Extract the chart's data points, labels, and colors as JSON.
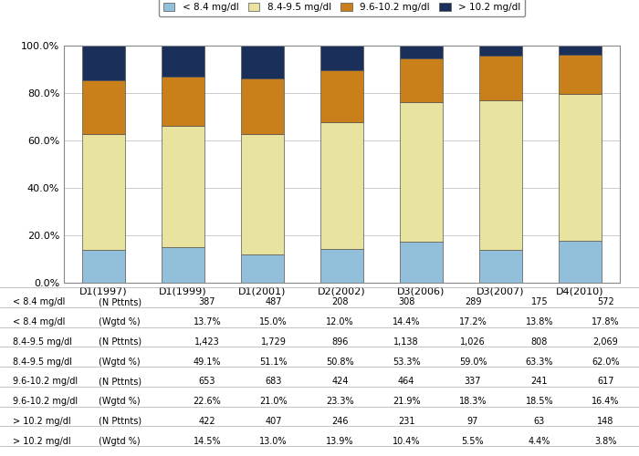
{
  "categories": [
    "D1(1997)",
    "D1(1999)",
    "D1(2001)",
    "D2(2002)",
    "D3(2006)",
    "D3(2007)",
    "D4(2010)"
  ],
  "series": {
    "< 8.4 mg/dl": [
      13.7,
      15.0,
      12.0,
      14.4,
      17.2,
      13.8,
      17.8
    ],
    "8.4-9.5 mg/dl": [
      49.1,
      51.1,
      50.8,
      53.3,
      59.0,
      63.3,
      62.0
    ],
    "9.6-10.2 mg/dl": [
      22.6,
      21.0,
      23.3,
      21.9,
      18.3,
      18.5,
      16.4
    ],
    "> 10.2 mg/dl": [
      14.5,
      13.0,
      13.9,
      10.4,
      5.5,
      4.4,
      3.8
    ]
  },
  "colors": {
    "< 8.4 mg/dl": "#92BFDA",
    "8.4-9.5 mg/dl": "#E8E4A0",
    "9.6-10.2 mg/dl": "#C97F1A",
    "> 10.2 mg/dl": "#1A2F5A"
  },
  "ylim": [
    0,
    100
  ],
  "yticks": [
    0,
    20,
    40,
    60,
    80,
    100
  ],
  "ytick_labels": [
    "0.0%",
    "20.0%",
    "40.0%",
    "60.0%",
    "80.0%",
    "100.0%"
  ],
  "legend_labels": [
    "< 8.4 mg/dl",
    "8.4-9.5 mg/dl",
    "9.6-10.2 mg/dl",
    "> 10.2 mg/dl"
  ],
  "background_color": "#FFFFFF",
  "grid_color": "#CCCCCC",
  "table_rows": [
    [
      "< 8.4 mg/dl",
      "(N Pttnts)",
      "387",
      "487",
      "208",
      "308",
      "289",
      "175",
      "572"
    ],
    [
      "< 8.4 mg/dl",
      "(Wgtd %)",
      "13.7%",
      "15.0%",
      "12.0%",
      "14.4%",
      "17.2%",
      "13.8%",
      "17.8%"
    ],
    [
      "8.4-9.5 mg/dl",
      "(N Pttnts)",
      "1,423",
      "1,729",
      "896",
      "1,138",
      "1,026",
      "808",
      "2,069"
    ],
    [
      "8.4-9.5 mg/dl",
      "(Wgtd %)",
      "49.1%",
      "51.1%",
      "50.8%",
      "53.3%",
      "59.0%",
      "63.3%",
      "62.0%"
    ],
    [
      "9.6-10.2 mg/dl",
      "(N Pttnts)",
      "653",
      "683",
      "424",
      "464",
      "337",
      "241",
      "617"
    ],
    [
      "9.6-10.2 mg/dl",
      "(Wgtd %)",
      "22.6%",
      "21.0%",
      "23.3%",
      "21.9%",
      "18.3%",
      "18.5%",
      "16.4%"
    ],
    [
      "> 10.2 mg/dl",
      "(N Pttnts)",
      "422",
      "407",
      "246",
      "231",
      "97",
      "63",
      "148"
    ],
    [
      "> 10.2 mg/dl",
      "(Wgtd %)",
      "14.5%",
      "13.0%",
      "13.9%",
      "10.4%",
      "5.5%",
      "4.4%",
      "3.8%"
    ]
  ]
}
